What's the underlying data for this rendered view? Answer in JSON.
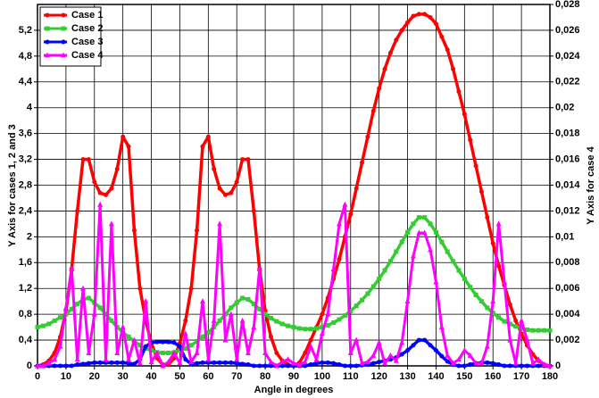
{
  "chart_data": {
    "type": "line",
    "x_label": "Angle in degrees",
    "y_label": "Y Axis for cases 1, 2 and 3",
    "y2_label": "Y Axis for case 4",
    "xlim": [
      0,
      180
    ],
    "xticks": [
      0,
      10,
      20,
      30,
      40,
      50,
      60,
      70,
      80,
      90,
      100,
      110,
      120,
      130,
      140,
      150,
      160,
      170,
      180
    ],
    "ylim": [
      0,
      5.6
    ],
    "yticks": [
      0,
      {
        "value": 0.4,
        "label": "0,4"
      },
      {
        "value": 0.8,
        "label": "0,8"
      },
      {
        "value": 1.2,
        "label": "1,2"
      },
      {
        "value": 1.6,
        "label": "1,6"
      },
      2,
      {
        "value": 2.4,
        "label": "2,4"
      },
      {
        "value": 2.8,
        "label": "2,8"
      },
      {
        "value": 3.2,
        "label": "3,2"
      },
      {
        "value": 3.6,
        "label": "3,6"
      },
      4,
      {
        "value": 4.4,
        "label": "4,4"
      },
      {
        "value": 4.8,
        "label": "4,8"
      },
      {
        "value": 5.2,
        "label": "5,2"
      }
    ],
    "y2lim": [
      0,
      0.028
    ],
    "y2ticks": [
      0,
      {
        "value": 0.002,
        "label": "0,002"
      },
      {
        "value": 0.004,
        "label": "0,004"
      },
      {
        "value": 0.006,
        "label": "0,006"
      },
      {
        "value": 0.008,
        "label": "0,008"
      },
      {
        "value": 0.01,
        "label": "0,01"
      },
      {
        "value": 0.012,
        "label": "0,012"
      },
      {
        "value": 0.014,
        "label": "0,014"
      },
      {
        "value": 0.016,
        "label": "0,016"
      },
      {
        "value": 0.018,
        "label": "0,018"
      },
      {
        "value": 0.02,
        "label": "0,02"
      },
      {
        "value": 0.022,
        "label": "0,022"
      },
      {
        "value": 0.024,
        "label": "0,024"
      },
      {
        "value": 0.026,
        "label": "0,026"
      },
      {
        "value": 0.028,
        "label": "0,028"
      }
    ],
    "grid": true,
    "legend": "top-left",
    "x": [
      0,
      2,
      4,
      6,
      8,
      10,
      12,
      14,
      16,
      18,
      20,
      22,
      24,
      26,
      28,
      30,
      32,
      34,
      36,
      38,
      40,
      42,
      44,
      46,
      48,
      50,
      52,
      54,
      56,
      58,
      60,
      62,
      64,
      66,
      68,
      70,
      72,
      74,
      76,
      78,
      80,
      82,
      84,
      86,
      88,
      90,
      92,
      94,
      96,
      98,
      100,
      102,
      104,
      106,
      108,
      110,
      112,
      114,
      116,
      118,
      120,
      122,
      124,
      126,
      128,
      130,
      132,
      134,
      136,
      138,
      140,
      142,
      144,
      146,
      148,
      150,
      152,
      154,
      156,
      158,
      160,
      162,
      164,
      166,
      168,
      170,
      172,
      174,
      176,
      178,
      180
    ],
    "series": [
      {
        "name": "Case 1",
        "color": "#ff0000",
        "marker": "circle",
        "values": [
          0,
          0.02,
          0.08,
          0.2,
          0.45,
          0.85,
          1.5,
          2.4,
          3.2,
          3.2,
          2.85,
          2.68,
          2.65,
          2.75,
          3.05,
          3.55,
          3.4,
          2.1,
          1.2,
          0.7,
          0.35,
          0.12,
          0.02,
          0.02,
          0.12,
          0.35,
          0.7,
          1.2,
          2.1,
          3.4,
          3.55,
          3.05,
          2.75,
          2.65,
          2.68,
          2.85,
          3.2,
          3.2,
          2.4,
          1.5,
          0.85,
          0.45,
          0.2,
          0.08,
          0.02,
          0,
          0.05,
          0.2,
          0.4,
          0.6,
          0.8,
          1.05,
          1.35,
          1.65,
          2.0,
          2.35,
          2.75,
          3.15,
          3.55,
          3.95,
          4.3,
          4.6,
          4.85,
          5.05,
          5.2,
          5.32,
          5.42,
          5.45,
          5.45,
          5.4,
          5.3,
          5.1,
          4.9,
          4.6,
          4.25,
          3.9,
          3.5,
          3.1,
          2.7,
          2.3,
          1.9,
          1.55,
          1.25,
          0.95,
          0.7,
          0.5,
          0.32,
          0.18,
          0.08,
          0.02,
          0
        ]
      },
      {
        "name": "Case 2",
        "color": "#33cc33",
        "marker": "square",
        "values": [
          0.6,
          0.62,
          0.65,
          0.7,
          0.75,
          0.8,
          0.88,
          0.96,
          1.03,
          1.05,
          0.98,
          0.9,
          0.8,
          0.7,
          0.6,
          0.52,
          0.45,
          0.38,
          0.32,
          0.27,
          0.24,
          0.21,
          0.2,
          0.2,
          0.21,
          0.24,
          0.27,
          0.32,
          0.38,
          0.45,
          0.52,
          0.6,
          0.7,
          0.8,
          0.9,
          0.98,
          1.05,
          1.03,
          0.96,
          0.88,
          0.8,
          0.74,
          0.69,
          0.65,
          0.62,
          0.6,
          0.58,
          0.57,
          0.57,
          0.58,
          0.6,
          0.63,
          0.67,
          0.72,
          0.78,
          0.85,
          0.93,
          1.02,
          1.12,
          1.23,
          1.35,
          1.48,
          1.62,
          1.77,
          1.92,
          2.07,
          2.2,
          2.3,
          2.3,
          2.2,
          2.07,
          1.92,
          1.77,
          1.62,
          1.48,
          1.35,
          1.22,
          1.1,
          1.0,
          0.9,
          0.82,
          0.75,
          0.69,
          0.65,
          0.61,
          0.58,
          0.56,
          0.55,
          0.55,
          0.55,
          0.55
        ]
      },
      {
        "name": "Case 3",
        "color": "#0000ff",
        "marker": "circle",
        "values": [
          0,
          0,
          0,
          0,
          0,
          0,
          0,
          0.02,
          0.03,
          0.04,
          0.05,
          0.05,
          0.05,
          0.05,
          0.05,
          0.05,
          0.04,
          0.03,
          0.1,
          0.3,
          0.36,
          0.37,
          0.37,
          0.37,
          0.36,
          0.3,
          0.1,
          0.03,
          0.04,
          0.05,
          0.05,
          0.05,
          0.05,
          0.05,
          0.05,
          0.04,
          0.03,
          0.02,
          0,
          0,
          0,
          0,
          0,
          0,
          0,
          0,
          0,
          0,
          0.02,
          0.04,
          0.05,
          0.05,
          0.04,
          0.02,
          0,
          0,
          0,
          0.01,
          0.02,
          0.04,
          0.06,
          0.08,
          0.1,
          0.13,
          0.18,
          0.24,
          0.32,
          0.4,
          0.4,
          0.32,
          0.24,
          0.15,
          0.07,
          0.02,
          0,
          0,
          0.02,
          0.04,
          0.05,
          0.05,
          0.04,
          0.02,
          0,
          0,
          0,
          0,
          0,
          0,
          0,
          0,
          0
        ]
      },
      {
        "name": "Case 4",
        "color": "#ff00ff",
        "marker": "triangle",
        "axis": "y2",
        "values": [
          0,
          0,
          0.0002,
          0.0005,
          0.0015,
          0.0045,
          0.0075,
          0.0005,
          0.006,
          0.001,
          0.004,
          0.0125,
          0.0005,
          0.011,
          0.001,
          0.003,
          0.0005,
          0.002,
          0.0002,
          0.005,
          0.0003,
          0.001,
          0,
          0.0003,
          0.001,
          0.0002,
          0.0025,
          0.0003,
          0.001,
          0.005,
          0.0005,
          0.0035,
          0.011,
          0.002,
          0.004,
          0.0005,
          0.0035,
          0.001,
          0.003,
          0.0075,
          0.001,
          0.0003,
          0,
          0.0003,
          0.0005,
          0.0002,
          0.0001,
          0.0003,
          0.0015,
          0.0005,
          0.0025,
          0.004,
          0.0075,
          0.011,
          0.0125,
          0.001,
          0.002,
          0.0002,
          0.0003,
          0.0008,
          0.0018,
          0.0002,
          0.0008,
          0.0004,
          0.0018,
          0.005,
          0.0085,
          0.0103,
          0.0103,
          0.009,
          0.0065,
          0.003,
          0.0008,
          0.0002,
          0.0005,
          0.0012,
          0.0008,
          0.0002,
          0.0002,
          0.0015,
          0.005,
          0.011,
          0.0065,
          0.002,
          0.0002,
          0.0035,
          0.002,
          0.0002,
          0.0005,
          0.0001,
          0
        ]
      }
    ]
  }
}
